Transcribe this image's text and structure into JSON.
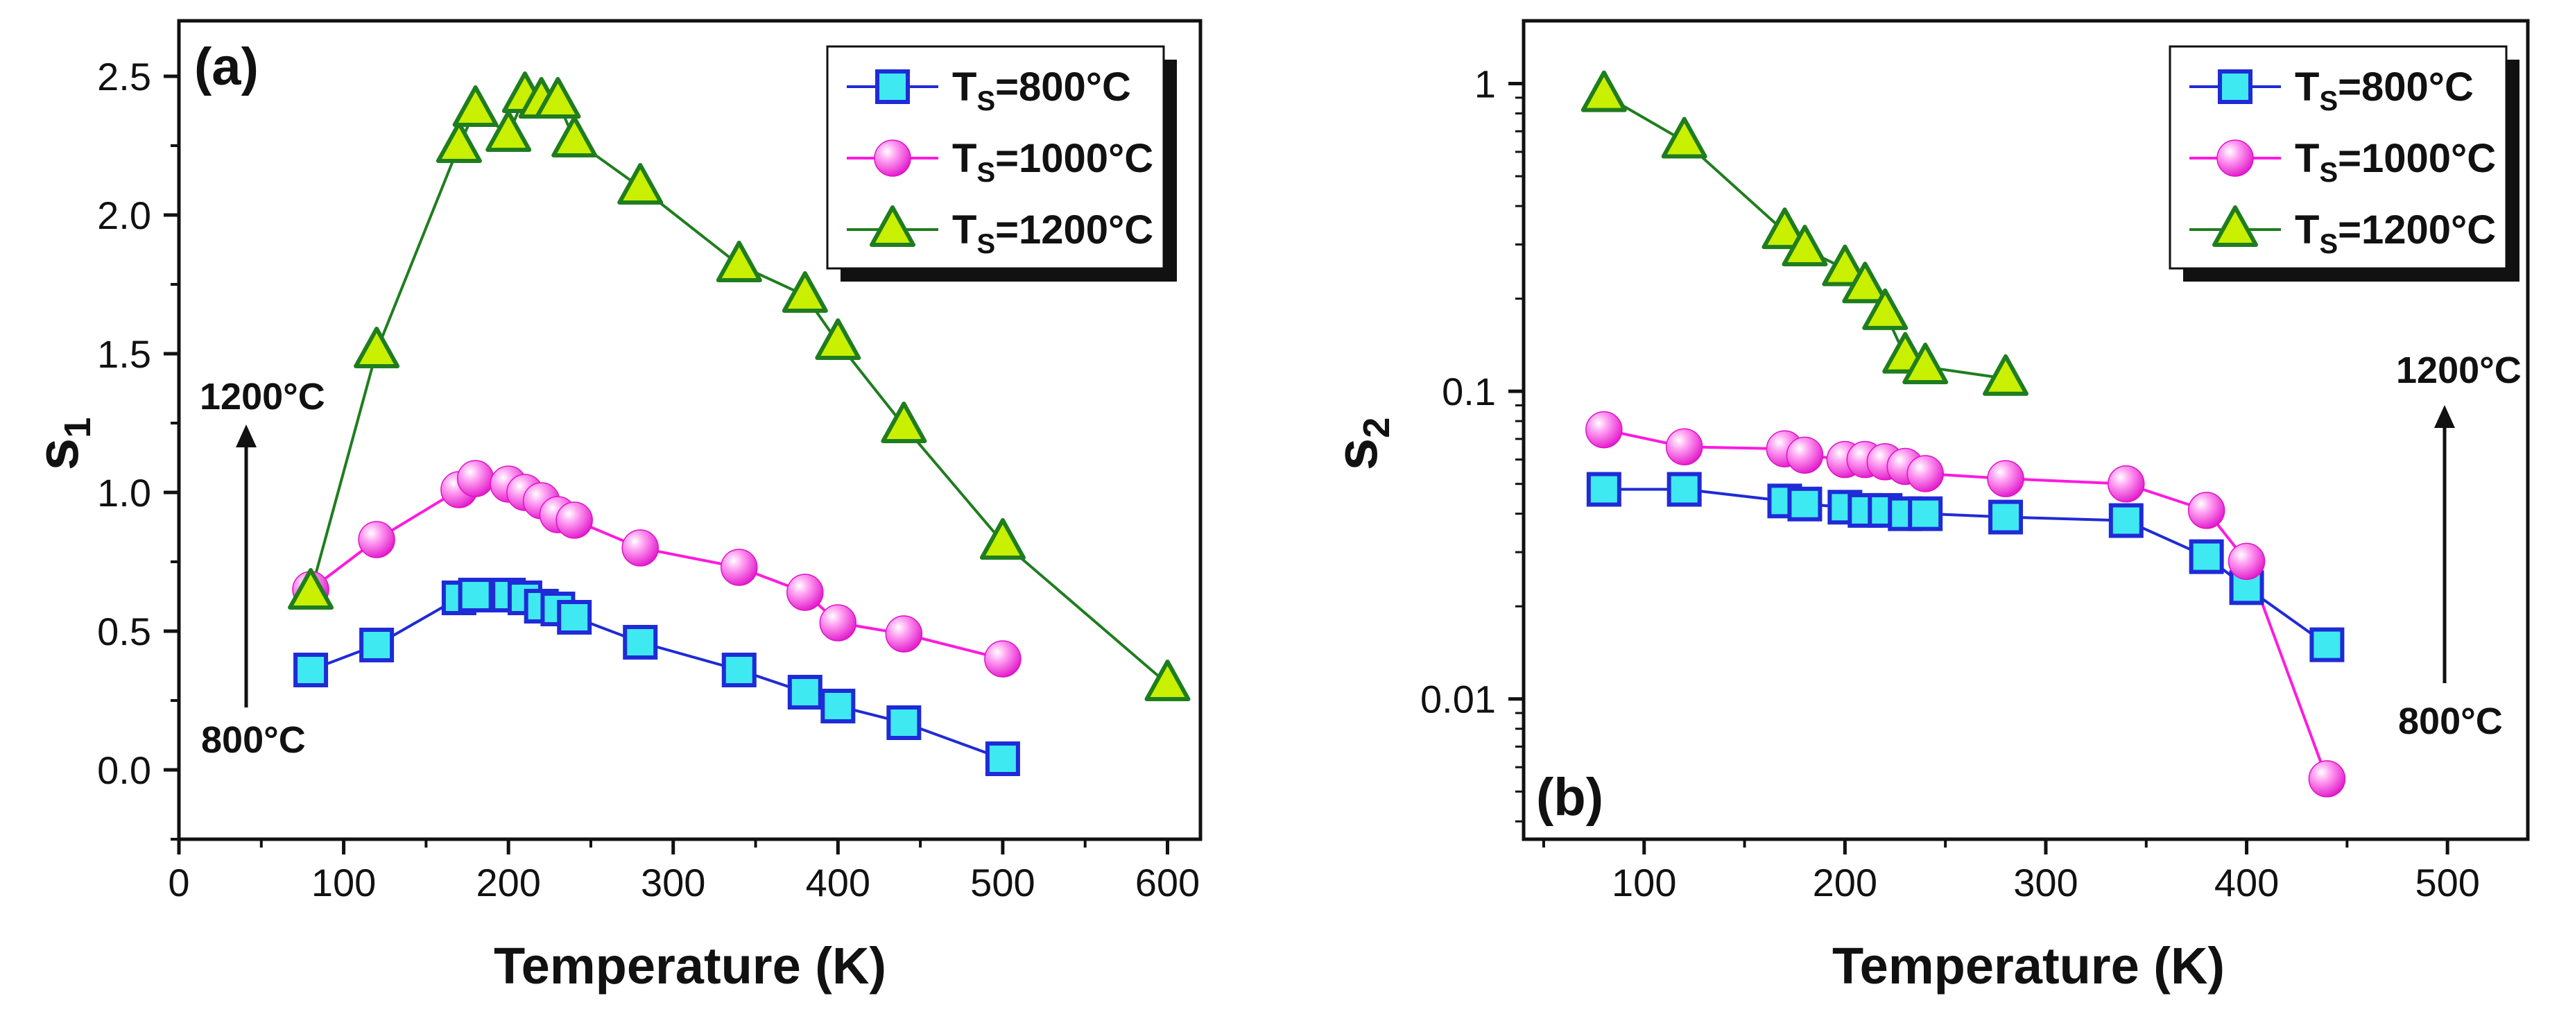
{
  "chart_data": [
    {
      "type": "line",
      "panel_label": "(a)",
      "xlabel": "Temperature (K)",
      "ylabel": "s",
      "ylabel_subscript": "1",
      "xlim": [
        0,
        620
      ],
      "ylim": [
        -0.25,
        2.7
      ],
      "yscale": "linear",
      "xticks": [
        "0",
        "100",
        "200",
        "300",
        "400",
        "500",
        "600"
      ],
      "yticks": [
        "0.0",
        "0.5",
        "1.0",
        "1.5",
        "2.0",
        "2.5"
      ],
      "legend_position": "top-right",
      "annotations": {
        "top": "1200°C",
        "bottom": "800°C"
      },
      "series": [
        {
          "name": "T_S=800°C",
          "name_main": "T",
          "name_sub": "S",
          "name_rest": "=800°C",
          "marker": "square",
          "line_color": "#1f2bd6",
          "fill_color": "#3fe9f2",
          "x": [
            80,
            120,
            170,
            180,
            200,
            210,
            220,
            230,
            240,
            280,
            340,
            380,
            400,
            440,
            500
          ],
          "y": [
            0.36,
            0.45,
            0.62,
            0.63,
            0.63,
            0.62,
            0.59,
            0.58,
            0.55,
            0.46,
            0.36,
            0.28,
            0.23,
            0.17,
            0.04
          ]
        },
        {
          "name": "T_S=1000°C",
          "name_main": "T",
          "name_sub": "S",
          "name_rest": "=1000°C",
          "marker": "sphere",
          "line_color": "#ff1adf",
          "fill_color": "#ff66ee",
          "x": [
            80,
            120,
            170,
            180,
            200,
            210,
            220,
            230,
            240,
            280,
            340,
            380,
            400,
            440,
            500
          ],
          "y": [
            0.65,
            0.83,
            1.01,
            1.05,
            1.03,
            1.0,
            0.97,
            0.92,
            0.9,
            0.8,
            0.73,
            0.64,
            0.53,
            0.49,
            0.4
          ]
        },
        {
          "name": "T_S=1200°C",
          "name_main": "T",
          "name_sub": "S",
          "name_rest": "=1200°C",
          "marker": "triangle",
          "line_color": "#1f7d1f",
          "fill_color": "#c8f000",
          "x": [
            80,
            120,
            170,
            180,
            200,
            210,
            220,
            230,
            240,
            280,
            340,
            380,
            400,
            440,
            500,
            600
          ],
          "y": [
            0.64,
            1.51,
            2.25,
            2.38,
            2.29,
            2.43,
            2.41,
            2.41,
            2.27,
            2.1,
            1.82,
            1.71,
            1.54,
            1.24,
            0.82,
            0.31
          ]
        }
      ]
    },
    {
      "type": "line",
      "panel_label": "(b)",
      "xlabel": "Temperature (K)",
      "ylabel": "s",
      "ylabel_subscript": "2",
      "xlim": [
        40,
        540
      ],
      "ylim": [
        0.0035,
        1.6
      ],
      "yscale": "log",
      "xticks": [
        "100",
        "200",
        "300",
        "400",
        "500"
      ],
      "yticks": [
        "0.01",
        "0.1",
        "1"
      ],
      "legend_position": "top-right",
      "annotations": {
        "top": "1200°C",
        "bottom": "800°C"
      },
      "series": [
        {
          "name": "T_S=800°C",
          "name_main": "T",
          "name_sub": "S",
          "name_rest": "=800°C",
          "marker": "square",
          "line_color": "#1f2bd6",
          "fill_color": "#3fe9f2",
          "x": [
            80,
            120,
            170,
            180,
            200,
            210,
            220,
            230,
            240,
            280,
            340,
            380,
            400,
            440
          ],
          "y": [
            0.048,
            0.048,
            0.044,
            0.043,
            0.042,
            0.041,
            0.041,
            0.04,
            0.04,
            0.039,
            0.038,
            0.029,
            0.023,
            0.015
          ]
        },
        {
          "name": "T_S=1000°C",
          "name_main": "T",
          "name_sub": "S",
          "name_rest": "=1000°C",
          "marker": "sphere",
          "line_color": "#ff1adf",
          "fill_color": "#ff66ee",
          "x": [
            80,
            120,
            170,
            180,
            200,
            210,
            220,
            230,
            240,
            280,
            340,
            380,
            400,
            440
          ],
          "y": [
            0.075,
            0.066,
            0.065,
            0.062,
            0.06,
            0.06,
            0.059,
            0.057,
            0.054,
            0.052,
            0.05,
            0.041,
            0.028,
            0.0055
          ]
        },
        {
          "name": "T_S=1200°C",
          "name_main": "T",
          "name_sub": "S",
          "name_rest": "=1200°C",
          "marker": "triangle",
          "line_color": "#1f7d1f",
          "fill_color": "#c8f000",
          "x": [
            80,
            120,
            170,
            180,
            200,
            210,
            220,
            230,
            240,
            280
          ],
          "y": [
            0.92,
            0.65,
            0.33,
            0.29,
            0.25,
            0.22,
            0.18,
            0.13,
            0.12,
            0.11
          ]
        }
      ]
    }
  ]
}
